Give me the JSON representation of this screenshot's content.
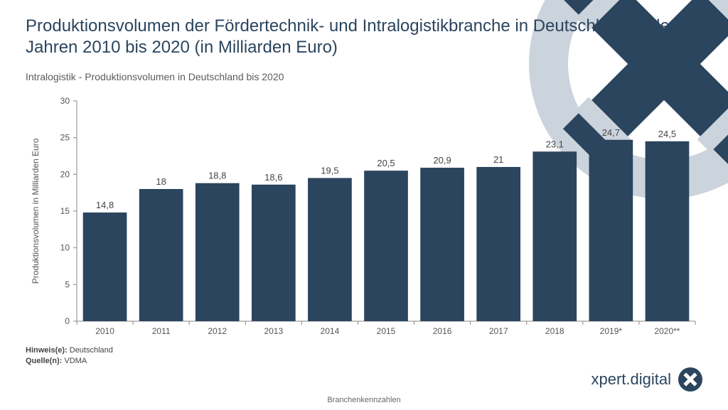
{
  "title": "Produktionsvolumen der Fördertechnik- und Intralogistikbranche in Deutschland in den Jahren 2010 bis 2020 (in Milliarden Euro)",
  "subtitle": "Intralogistik - Produktionsvolumen in Deutschland bis 2020",
  "chart": {
    "type": "bar",
    "categories": [
      "2010",
      "2011",
      "2012",
      "2013",
      "2014",
      "2015",
      "2016",
      "2017",
      "2018",
      "2019*",
      "2020**"
    ],
    "values": [
      14.8,
      18,
      18.8,
      18.6,
      19.5,
      20.5,
      20.9,
      21,
      23.1,
      24.7,
      24.5
    ],
    "value_labels": [
      "14,8",
      "18",
      "18,8",
      "18,6",
      "19,5",
      "20,5",
      "20,9",
      "21",
      "23,1",
      "24,7",
      "24,5"
    ],
    "bar_color": "#2b455e",
    "background_color": "#ffffff",
    "axis_color": "#888888",
    "tick_label_color": "#555555",
    "value_label_color": "#444444",
    "ylim": [
      0,
      30
    ],
    "ytick_step": 5,
    "yticks": [
      0,
      5,
      10,
      15,
      20,
      25,
      30
    ],
    "ylabel": "Produktionsvolumen in Milliarden Euro",
    "ylabel_fontsize": 12,
    "tick_fontsize": 12,
    "value_fontsize": 13,
    "bar_gap_ratio": 0.22
  },
  "footnotes": {
    "note_label": "Hinweis(e):",
    "note_text": "Deutschland",
    "source_label": "Quelle(n):",
    "source_text": "VDMA"
  },
  "bottom_caption": "Branchenkennzahlen",
  "brand": {
    "name": "xpert.digital",
    "icon_letter": "X"
  },
  "decor": {
    "ring_outer": "#cbd3dc",
    "ring_inner": "#ffffff",
    "x_color": "#2b455e"
  }
}
